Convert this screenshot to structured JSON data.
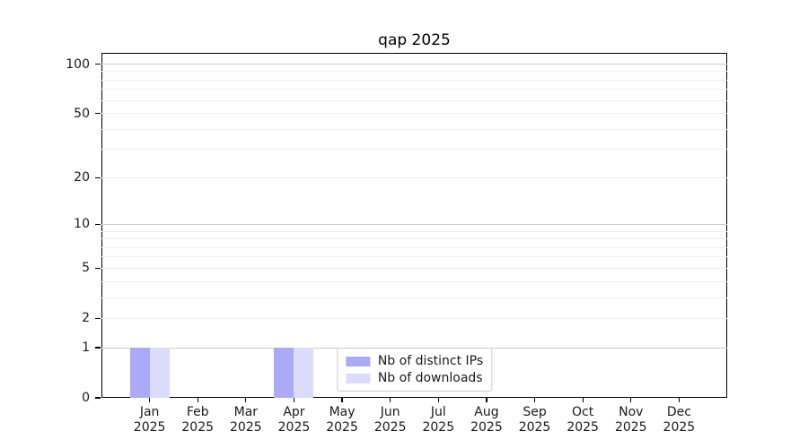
{
  "figure": {
    "background": "#ffffff",
    "text_color": "#1a1a1a",
    "axis_color": "#000000"
  },
  "chart_data": {
    "type": "bar",
    "title": "qap 2025",
    "categories": [
      "Jan",
      "Feb",
      "Mar",
      "Apr",
      "May",
      "Jun",
      "Jul",
      "Aug",
      "Sep",
      "Oct",
      "Nov",
      "Dec"
    ],
    "category_year": "2025",
    "series": [
      {
        "name": "Nb of distinct IPs",
        "color": "#aaaaf6",
        "values": [
          1,
          0,
          0,
          1,
          0,
          0,
          0,
          0,
          0,
          0,
          0,
          0
        ]
      },
      {
        "name": "Nb of downloads",
        "color": "#dbdbfa",
        "values": [
          1,
          0,
          0,
          1,
          0,
          0,
          0,
          0,
          0,
          0,
          0,
          0
        ]
      }
    ],
    "y_axis": {
      "scale": "log1p",
      "ylim": [
        0,
        117
      ],
      "tick_labels": [
        0,
        1,
        2,
        5,
        10,
        20,
        50,
        100
      ],
      "major_gridlines": [
        1,
        10,
        100
      ],
      "minor_gridlines": [
        2,
        3,
        4,
        5,
        6,
        7,
        8,
        9,
        20,
        30,
        40,
        50,
        60,
        70,
        80,
        90
      ],
      "major_grid_color": "#cccccc",
      "minor_grid_color": "#eeeeee"
    },
    "grid": true,
    "legend": {
      "position": "lower center",
      "entries": [
        "Nb of distinct IPs",
        "Nb of downloads"
      ]
    }
  }
}
